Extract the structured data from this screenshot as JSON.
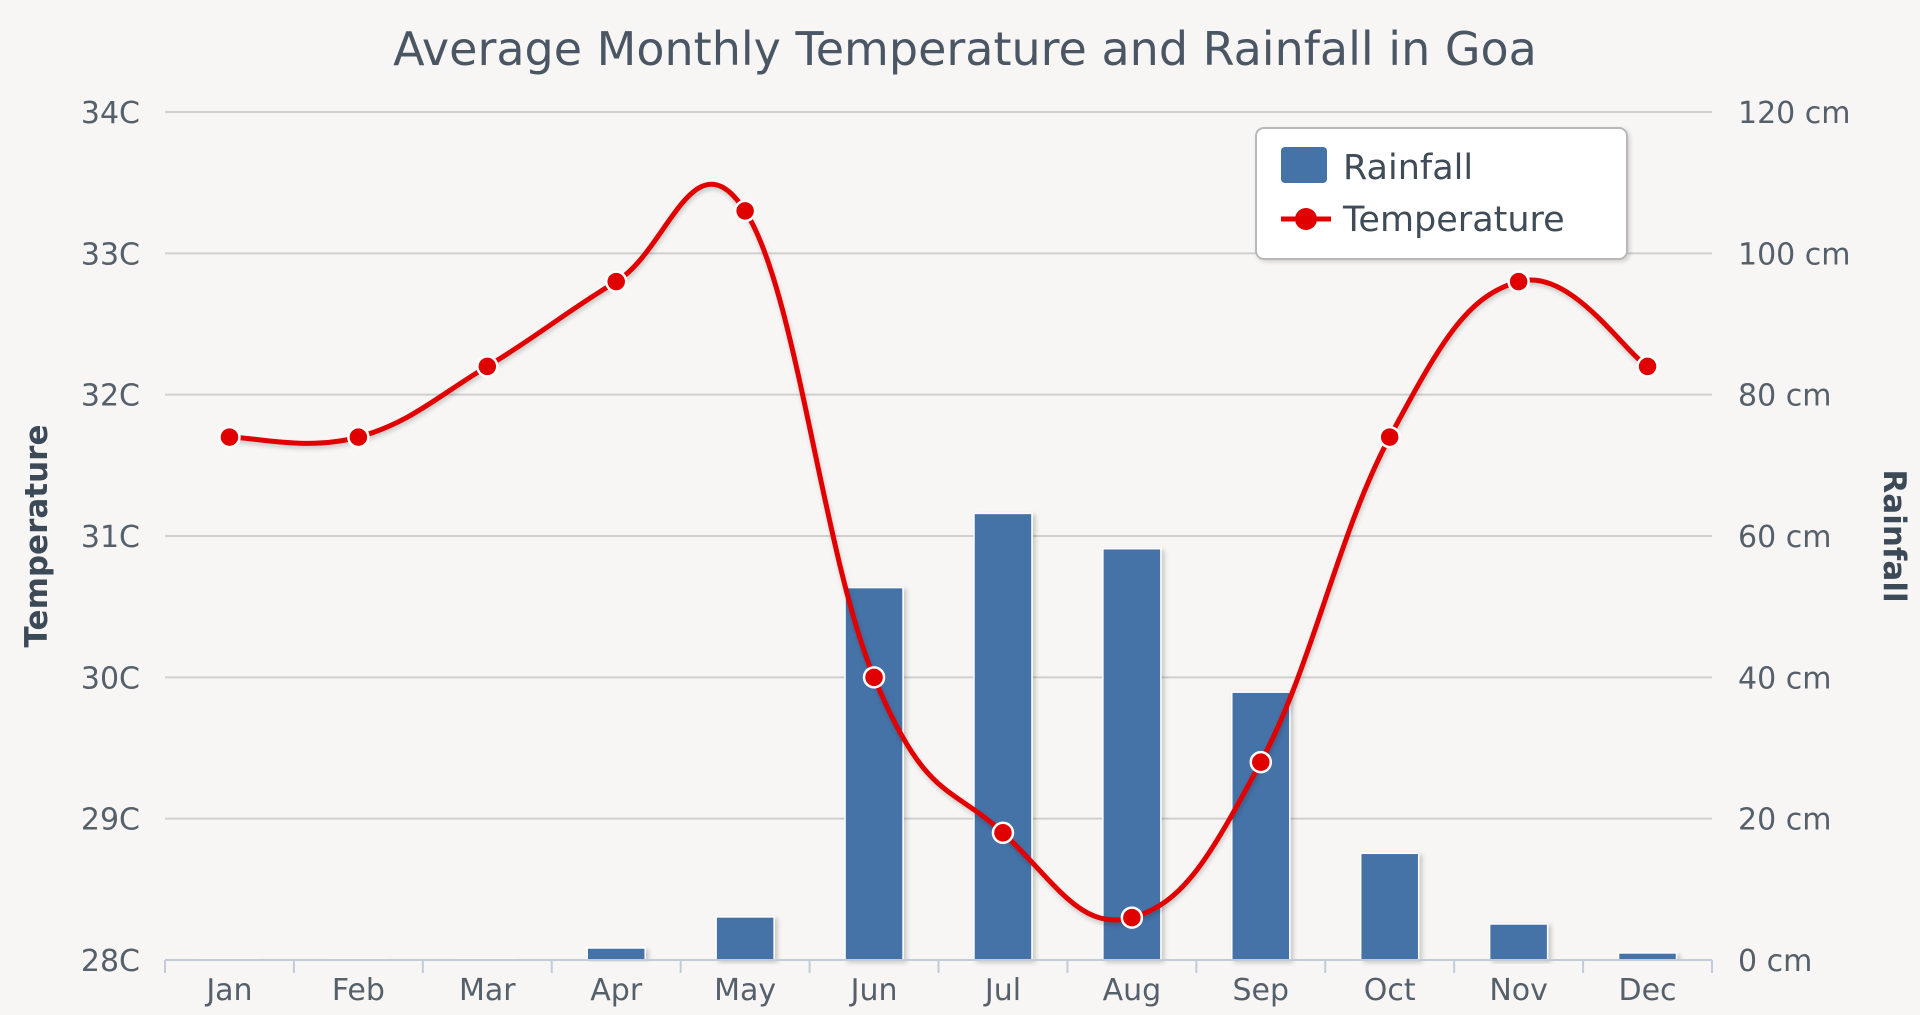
{
  "chart_data": {
    "type": "bar",
    "title": "Average Monthly Temperature and Rainfall in Goa",
    "categories": [
      "Jan",
      "Feb",
      "Mar",
      "Apr",
      "May",
      "Jun",
      "Jul",
      "Aug",
      "Sep",
      "Oct",
      "Nov",
      "Dec"
    ],
    "series": [
      {
        "name": "Rainfall",
        "type": "bar",
        "axis": "right",
        "color": "#4572a7",
        "values": [
          0.2,
          0.1,
          0.1,
          1.7,
          6.1,
          52.7,
          63.2,
          58.2,
          37.9,
          15.1,
          5.1,
          1.0
        ]
      },
      {
        "name": "Temperature",
        "type": "line",
        "axis": "left",
        "color": "#e00000",
        "values": [
          31.7,
          31.7,
          32.2,
          32.8,
          33.3,
          30.0,
          28.9,
          28.3,
          29.4,
          31.7,
          32.8,
          32.2
        ]
      }
    ],
    "left_axis": {
      "title": "Temperature",
      "range": [
        28,
        34
      ],
      "ticks": [
        28,
        29,
        30,
        31,
        32,
        33,
        34
      ],
      "tick_labels": [
        "28C",
        "29C",
        "30C",
        "31C",
        "32C",
        "33C",
        "34C"
      ]
    },
    "right_axis": {
      "title": "Rainfall",
      "range": [
        0,
        120
      ],
      "ticks": [
        0,
        20,
        40,
        60,
        80,
        100,
        120
      ],
      "tick_labels": [
        "0 cm",
        "20 cm",
        "40 cm",
        "60 cm",
        "80 cm",
        "100 cm",
        "120 cm"
      ]
    },
    "grid": true,
    "legend_position": "top-right"
  }
}
